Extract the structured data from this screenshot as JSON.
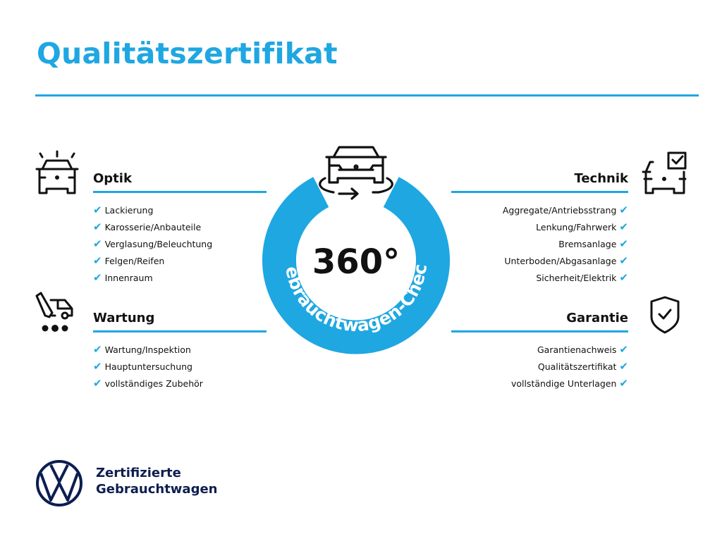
{
  "title": "Qualitätszertifikat",
  "center": {
    "degrees": "360°",
    "arc_text": "Gebrauchtwagen-Check",
    "ring_color": "#1fa7e1"
  },
  "sections": {
    "optik": {
      "heading": "Optik",
      "icon": "car-lights-icon",
      "items": [
        "Lackierung",
        "Karosserie/Anbauteile",
        "Verglasung/Beleuchtung",
        "Felgen/Reifen",
        "Innenraum"
      ]
    },
    "wartung": {
      "heading": "Wartung",
      "icon": "service-wrench-car-icon",
      "items": [
        "Wartung/Inspektion",
        "Hauptuntersuchung",
        "vollständiges Zubehör"
      ]
    },
    "technik": {
      "heading": "Technik",
      "icon": "car-checkbox-icon",
      "items": [
        "Aggregate/Antriebsstrang",
        "Lenkung/Fahrwerk",
        "Bremsanlage",
        "Unterboden/Abgasanlage",
        "Sicherheit/Elektrik"
      ]
    },
    "garantie": {
      "heading": "Garantie",
      "icon": "shield-check-icon",
      "items": [
        "Garantienachweis",
        "Qualitätszertifikat",
        "vollständige Unterlagen"
      ]
    }
  },
  "check_glyph": "✔",
  "brand": {
    "line1": "Zertifizierte",
    "line2": "Gebrauchtwagen",
    "logo": "vw-logo",
    "color": "#0c1e50"
  },
  "accent": "#1fa7e1"
}
